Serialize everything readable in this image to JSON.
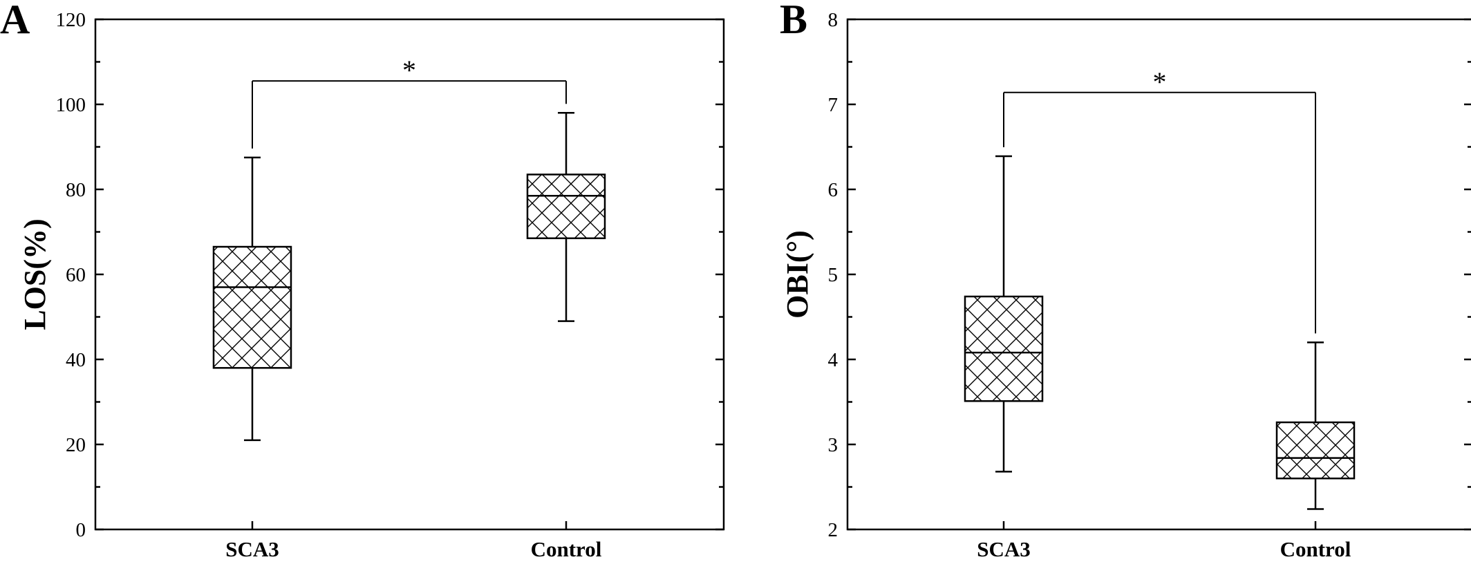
{
  "chart_data": [
    {
      "type": "box",
      "panel_label": "A",
      "ylabel": "LOS(%)",
      "ylim": [
        0,
        120
      ],
      "yticks": [
        0,
        20,
        40,
        60,
        80,
        100,
        120
      ],
      "categories": [
        "SCA3",
        "Control"
      ],
      "boxes": [
        {
          "category": "SCA3",
          "whisker_low": 21,
          "q1": 38,
          "median": 57,
          "q3": 66.5,
          "whisker_high": 87.5
        },
        {
          "category": "Control",
          "whisker_low": 49,
          "q1": 68.5,
          "median": 78.5,
          "q3": 83.5,
          "whisker_high": 98
        }
      ],
      "significance": {
        "between": [
          "SCA3",
          "Control"
        ],
        "level": 105.5,
        "label": "*"
      },
      "grid": false,
      "fill_pattern": "crosshatch"
    },
    {
      "type": "box",
      "panel_label": "B",
      "ylabel": "OBI(°)",
      "ylim": [
        2,
        8
      ],
      "yticks": [
        2,
        3,
        4,
        5,
        6,
        7,
        8
      ],
      "categories": [
        "SCA3",
        "Control"
      ],
      "boxes": [
        {
          "category": "SCA3",
          "whisker_low": 2.68,
          "q1": 3.51,
          "median": 4.08,
          "q3": 4.74,
          "whisker_high": 6.39
        },
        {
          "category": "Control",
          "whisker_low": 2.24,
          "q1": 2.6,
          "median": 2.84,
          "q3": 3.26,
          "whisker_high": 4.2
        }
      ],
      "significance": {
        "between": [
          "SCA3",
          "Control"
        ],
        "level": 7.14,
        "label": "*"
      },
      "grid": false,
      "fill_pattern": "crosshatch"
    }
  ]
}
